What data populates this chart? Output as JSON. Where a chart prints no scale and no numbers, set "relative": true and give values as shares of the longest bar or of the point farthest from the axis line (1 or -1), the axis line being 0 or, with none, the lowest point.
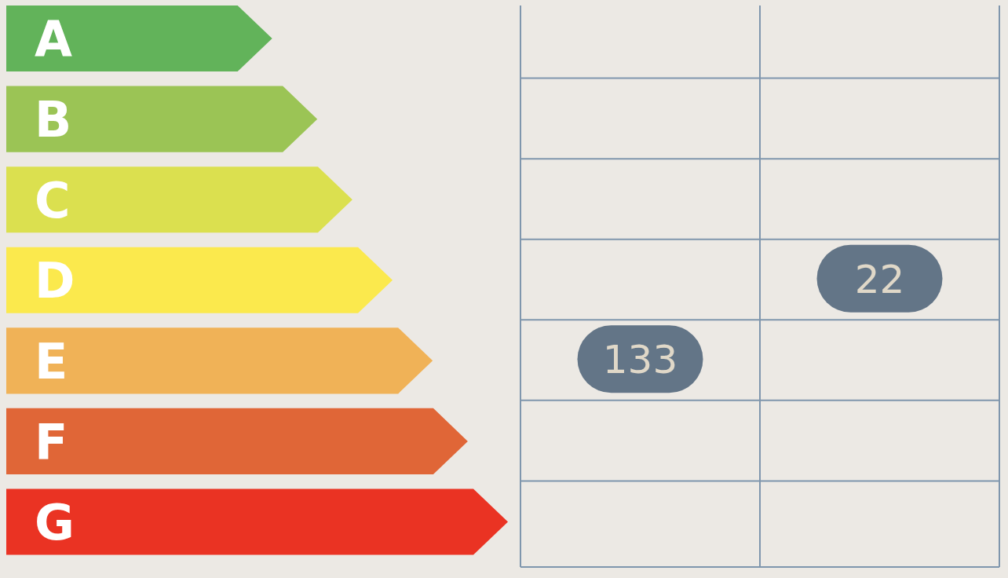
{
  "chart_data": {
    "type": "bar",
    "orientation": "horizontal",
    "relative": true,
    "categories": [
      "A",
      "B",
      "C",
      "D",
      "E",
      "F",
      "G"
    ],
    "values": [
      0.53,
      0.62,
      0.69,
      0.77,
      0.85,
      0.92,
      1
    ],
    "colors": [
      "#62b35a",
      "#9bc455",
      "#dbe04f",
      "#fbe94d",
      "#f0b257",
      "#e06637",
      "#ea3323"
    ],
    "annotations": [
      "133",
      "22"
    ]
  }
}
